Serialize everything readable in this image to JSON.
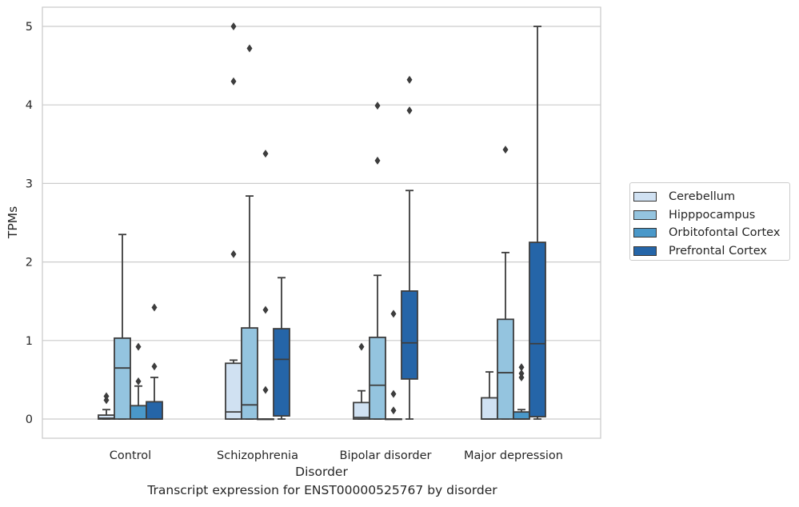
{
  "caption": "Transcript expression for ENST00000525767 by disorder",
  "chart_data": {
    "type": "boxplot",
    "title": "",
    "xlabel": "Disorder",
    "ylabel": "TPMs",
    "categories": [
      "Control",
      "Schizophrenia",
      "Bipolar disorder",
      "Major depression"
    ],
    "y_ticks": [
      "0",
      "1",
      "2",
      "3",
      "4",
      "5"
    ],
    "ylim": [
      -0.25,
      5.25
    ],
    "grid": "horizontal",
    "legend_position": "right",
    "series": [
      {
        "name": "Cerebellum",
        "color": "#d0e1f2",
        "boxes": [
          {
            "q1": 0,
            "median": 0.01,
            "q3": 0.05,
            "whisker_low": 0,
            "whisker_high": 0.12,
            "outliers": [
              0.24,
              0.29
            ]
          },
          {
            "q1": 0,
            "median": 0.09,
            "q3": 0.71,
            "whisker_low": 0,
            "whisker_high": 0.75,
            "outliers": [
              2.1,
              4.3,
              5.0
            ]
          },
          {
            "q1": 0,
            "median": 0.02,
            "q3": 0.21,
            "whisker_low": 0,
            "whisker_high": 0.36,
            "outliers": [
              0.92
            ]
          },
          {
            "q1": 0,
            "median": 0,
            "q3": 0.27,
            "whisker_low": 0,
            "whisker_high": 0.6,
            "outliers": []
          }
        ]
      },
      {
        "name": "Hipppocampus",
        "color": "#94c4df",
        "boxes": [
          {
            "q1": 0,
            "median": 0.65,
            "q3": 1.03,
            "whisker_low": 0,
            "whisker_high": 2.35,
            "outliers": []
          },
          {
            "q1": 0,
            "median": 0.18,
            "q3": 1.16,
            "whisker_low": 0,
            "whisker_high": 2.84,
            "outliers": [
              4.72
            ]
          },
          {
            "q1": 0,
            "median": 0.43,
            "q3": 1.04,
            "whisker_low": 0,
            "whisker_high": 1.83,
            "outliers": [
              3.29,
              3.99
            ]
          },
          {
            "q1": 0,
            "median": 0.59,
            "q3": 1.27,
            "whisker_low": 0,
            "whisker_high": 2.12,
            "outliers": [
              3.43
            ]
          }
        ]
      },
      {
        "name": "Orbitofontal Cortex",
        "color": "#4a98c9",
        "boxes": [
          {
            "q1": 0,
            "median": 0,
            "q3": 0.17,
            "whisker_low": 0,
            "whisker_high": 0.42,
            "outliers": [
              0.48,
              0.92
            ]
          },
          {
            "q1": 0,
            "median": 0,
            "q3": 0,
            "whisker_low": 0,
            "whisker_high": 0,
            "outliers": [
              0.37,
              1.39,
              3.38
            ]
          },
          {
            "q1": 0,
            "median": 0,
            "q3": 0,
            "whisker_low": 0,
            "whisker_high": 0,
            "outliers": [
              0.11,
              0.32,
              1.34
            ]
          },
          {
            "q1": 0,
            "median": 0,
            "q3": 0.09,
            "whisker_low": 0,
            "whisker_high": 0.12,
            "outliers": [
              0.53,
              0.58,
              0.66
            ]
          }
        ]
      },
      {
        "name": "Prefrontal Cortex",
        "color": "#2565a8",
        "boxes": [
          {
            "q1": 0,
            "median": 0,
            "q3": 0.22,
            "whisker_low": 0,
            "whisker_high": 0.53,
            "outliers": [
              0.67,
              1.42
            ]
          },
          {
            "q1": 0.04,
            "median": 0.76,
            "q3": 1.15,
            "whisker_low": 0,
            "whisker_high": 1.8,
            "outliers": []
          },
          {
            "q1": 0.51,
            "median": 0.97,
            "q3": 1.63,
            "whisker_low": 0,
            "whisker_high": 2.91,
            "outliers": [
              3.93,
              4.32
            ]
          },
          {
            "q1": 0.03,
            "median": 0.96,
            "q3": 2.25,
            "whisker_low": 0,
            "whisker_high": 5.0,
            "outliers": []
          }
        ]
      }
    ]
  }
}
